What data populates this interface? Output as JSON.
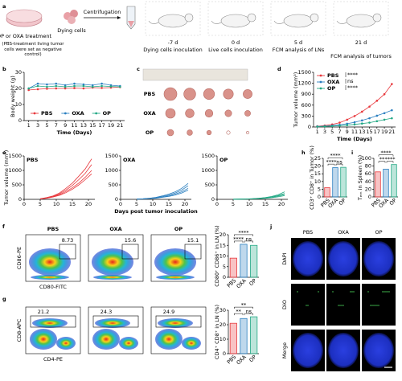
{
  "panel_labels": [
    "a",
    "b",
    "c",
    "d",
    "e",
    "f",
    "g",
    "h",
    "i",
    "j"
  ],
  "schematic": {
    "treatment": "OP or OXA treatment",
    "note": "(PBS-treatment living tumor cells were set as negative control)",
    "dying_cells": "Dying cells",
    "centrifugation": "Centrifugation",
    "timeline": [
      {
        "day": "-7 d",
        "event": "Dying cells inoculation"
      },
      {
        "day": "0 d",
        "event": "Live cells inoculation"
      },
      {
        "day": "5 d",
        "event": "FCM analysis of LNs"
      },
      {
        "day": "21 d",
        "event": "FCM analysis of tumors"
      }
    ]
  },
  "photos": {
    "rows": [
      "PBS",
      "OXA",
      "OP"
    ]
  },
  "flow": {
    "groups": [
      "PBS",
      "OXA",
      "OP"
    ],
    "f": {
      "y_label": "CD86-PE",
      "x_label": "CD80-FITC",
      "gates": [
        8.73,
        15.6,
        15.1
      ]
    },
    "g": {
      "y_label": "CD8-APC",
      "x_label": "CD4-PE",
      "gates": [
        21.2,
        24.3,
        24.9
      ]
    }
  },
  "imaging": {
    "columns": [
      "PBS",
      "OXA",
      "OP"
    ],
    "rows": [
      "DAPI",
      "DiO",
      "Merge"
    ]
  },
  "chart_data": [
    {
      "type": "line",
      "x_label": "Time (Days)",
      "y_label": "Body weight (g)",
      "x": [
        1,
        3,
        5,
        7,
        9,
        11,
        13,
        15,
        17,
        19,
        21
      ],
      "xlim": [
        0,
        22
      ],
      "xticks": [
        1,
        3,
        5,
        7,
        9,
        11,
        13,
        15,
        17,
        19,
        21
      ],
      "ylim": [
        0,
        30
      ],
      "yticks": [
        0,
        10,
        20,
        30
      ],
      "markers": true,
      "legend": "bottom",
      "series": [
        {
          "name": "PBS",
          "color": "#e8383d",
          "values": [
            19,
            19.5,
            19.8,
            20,
            20,
            20.2,
            20,
            20.5,
            20.3,
            20.5,
            20.8
          ]
        },
        {
          "name": "OXA",
          "color": "#2a7fc0",
          "values": [
            20,
            23,
            22.5,
            23,
            22,
            23,
            22.5,
            22,
            23,
            22,
            21.5
          ]
        },
        {
          "name": "OP",
          "color": "#22a884",
          "values": [
            20,
            21.5,
            21,
            21.5,
            21,
            21.5,
            21.5,
            21,
            21.5,
            21.2,
            21
          ]
        }
      ]
    },
    {
      "type": "line",
      "x_label": "Time (Days)",
      "y_label": "Tumor volume (mm³)",
      "x": [
        1,
        3,
        5,
        7,
        9,
        11,
        13,
        15,
        17,
        19,
        21
      ],
      "xlim": [
        0,
        22
      ],
      "xticks": [
        1,
        3,
        5,
        7,
        9,
        11,
        13,
        15,
        17,
        19,
        21
      ],
      "ylim": [
        0,
        1500
      ],
      "yticks": [
        0,
        300,
        600,
        900,
        1200,
        1500
      ],
      "markers": true,
      "legend": "upper left",
      "annotations": [
        "****",
        "ns",
        "****"
      ],
      "series": [
        {
          "name": "PBS",
          "color": "#e8383d",
          "values": [
            20,
            40,
            70,
            120,
            200,
            300,
            420,
            560,
            720,
            900,
            1180
          ]
        },
        {
          "name": "OXA",
          "color": "#2a7fc0",
          "values": [
            15,
            25,
            40,
            60,
            90,
            130,
            180,
            240,
            310,
            380,
            460
          ]
        },
        {
          "name": "OP",
          "color": "#22a884",
          "values": [
            10,
            15,
            25,
            35,
            50,
            70,
            95,
            120,
            160,
            200,
            240
          ]
        }
      ]
    },
    {
      "type": "line",
      "title": "PBS",
      "y_label": "Tumor volume (mm³)",
      "x": [
        5,
        7,
        9,
        11,
        13,
        15,
        17,
        19,
        21
      ],
      "xlim": [
        0,
        22
      ],
      "xticks": [
        0,
        5,
        10,
        15,
        20
      ],
      "ylim": [
        0,
        1500
      ],
      "yticks": [
        0,
        500,
        1000,
        1500
      ],
      "markers": false,
      "series": [
        {
          "color": "#e8383d",
          "values": [
            20,
            60,
            120,
            220,
            380,
            560,
            800,
            1050,
            1400
          ]
        },
        {
          "color": "#e8383d",
          "values": [
            15,
            50,
            100,
            190,
            320,
            480,
            680,
            900,
            1200
          ]
        },
        {
          "color": "#e8383d",
          "values": [
            20,
            40,
            90,
            160,
            270,
            400,
            560,
            760,
            1000
          ]
        },
        {
          "color": "#e8383d",
          "values": [
            10,
            40,
            80,
            140,
            230,
            350,
            500,
            680,
            880
          ]
        }
      ]
    },
    {
      "type": "line",
      "title": "OXA",
      "x_label": "Days post tumor inoculation",
      "x": [
        5,
        7,
        9,
        11,
        13,
        15,
        17,
        19,
        21
      ],
      "xlim": [
        0,
        22
      ],
      "xticks": [
        0,
        5,
        10,
        15,
        20
      ],
      "ylim": [
        0,
        1500
      ],
      "yticks": [
        0,
        500,
        1000,
        1500
      ],
      "markers": false,
      "series": [
        {
          "color": "#2a7fc0",
          "values": [
            10,
            20,
            40,
            70,
            120,
            180,
            260,
            380,
            550
          ]
        },
        {
          "color": "#2a7fc0",
          "values": [
            10,
            20,
            35,
            60,
            100,
            150,
            220,
            320,
            470
          ]
        },
        {
          "color": "#2a7fc0",
          "values": [
            5,
            15,
            30,
            50,
            80,
            120,
            180,
            260,
            380
          ]
        },
        {
          "color": "#2a7fc0",
          "values": [
            5,
            10,
            25,
            40,
            70,
            100,
            150,
            220,
            320
          ]
        }
      ]
    },
    {
      "type": "line",
      "title": "OP",
      "x": [
        5,
        7,
        9,
        11,
        13,
        15,
        17,
        19,
        21
      ],
      "xlim": [
        0,
        22
      ],
      "xticks": [
        0,
        5,
        10,
        15,
        20
      ],
      "ylim": [
        0,
        1500
      ],
      "yticks": [
        0,
        500,
        1000,
        1500
      ],
      "markers": false,
      "series": [
        {
          "color": "#22a884",
          "values": [
            5,
            10,
            15,
            25,
            40,
            60,
            100,
            160,
            260
          ]
        },
        {
          "color": "#22a884",
          "values": [
            5,
            8,
            12,
            20,
            35,
            55,
            85,
            130,
            200
          ]
        },
        {
          "color": "#22a884",
          "values": [
            3,
            6,
            10,
            18,
            28,
            45,
            70,
            110,
            170
          ]
        },
        {
          "color": "#22a884",
          "values": [
            2,
            5,
            8,
            14,
            22,
            35,
            55,
            85,
            130
          ]
        }
      ]
    },
    {
      "type": "bar",
      "y_label": "CD3⁺ CD8⁺ in Tumor (%)",
      "categories": [
        "PBS",
        "OXA",
        "OP"
      ],
      "values": [
        6,
        19,
        19.2
      ],
      "colors": [
        "#e8383d",
        "#2a7fc0",
        "#22a884"
      ],
      "ylim": [
        0,
        25
      ],
      "yticks": [
        0,
        5,
        10,
        15,
        20,
        25
      ],
      "annotations": [
        "****",
        "****",
        "ns"
      ]
    },
    {
      "type": "bar",
      "y_label": "Tₑₘ in Spleen (%)",
      "categories": [
        "PBS",
        "OXA",
        "OP"
      ],
      "values": [
        65,
        72,
        84
      ],
      "colors": [
        "#e8383d",
        "#2a7fc0",
        "#22a884"
      ],
      "ylim": [
        0,
        100
      ],
      "yticks": [
        0,
        20,
        40,
        60,
        80,
        100
      ],
      "annotations": [
        "****",
        "**",
        "****"
      ]
    },
    {
      "type": "bar",
      "y_label": "CD80⁺ CD86⁺ in LN (%)",
      "categories": [
        "PBS",
        "OXA",
        "OP"
      ],
      "values": [
        9,
        15.5,
        15
      ],
      "colors": [
        "#e8383d",
        "#2a7fc0",
        "#22a884"
      ],
      "ylim": [
        0,
        20
      ],
      "yticks": [
        0,
        5,
        10,
        15,
        20
      ],
      "annotations": [
        "****",
        "****",
        "ns"
      ]
    },
    {
      "type": "bar",
      "y_label": "CD4⁺ CD8⁺ in LN (%)",
      "categories": [
        "PBS",
        "OXA",
        "OP"
      ],
      "values": [
        21,
        24.3,
        25.5
      ],
      "colors": [
        "#e8383d",
        "#2a7fc0",
        "#22a884"
      ],
      "ylim": [
        0,
        30
      ],
      "yticks": [
        0,
        10,
        20,
        30
      ],
      "annotations": [
        "**",
        "**",
        "ns"
      ]
    }
  ]
}
